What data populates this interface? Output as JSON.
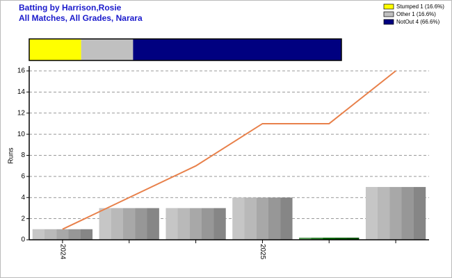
{
  "chart_data": [
    {
      "type": "stacked_bar",
      "title": "Batting by Harrison,Rosie",
      "subtitle": "All Matches, All Grades, Narara",
      "series": [
        {
          "name": "Stumped 1 (16.6%)",
          "color": "#ffff00",
          "values": [
            16.6
          ]
        },
        {
          "name": "Other 1 (16.6%)",
          "color": "#c0c0c0",
          "values": [
            16.6
          ]
        },
        {
          "name": "NotOut 4 (66.6%)",
          "color": "#000080",
          "values": [
            66.6
          ]
        }
      ]
    },
    {
      "type": "bar",
      "ylabel": "Runs",
      "categories": [
        "2024",
        null,
        null,
        "2025",
        null,
        null
      ],
      "series": [
        {
          "type": "bar",
          "colors": [
            "#a8a8a8",
            "#a8a8a8",
            "#a8a8a8",
            "#a8a8a8",
            "#006400",
            "#a8a8a8"
          ],
          "values": [
            1,
            3,
            3,
            4,
            0.2,
            5
          ]
        },
        {
          "type": "line",
          "color": "#e8804a",
          "values": [
            1,
            4,
            7,
            11,
            11,
            16
          ]
        }
      ],
      "ylim": [
        0,
        16
      ],
      "yticks": [
        0,
        2,
        4,
        6,
        8,
        10,
        12,
        14,
        16
      ],
      "grid": true
    }
  ]
}
